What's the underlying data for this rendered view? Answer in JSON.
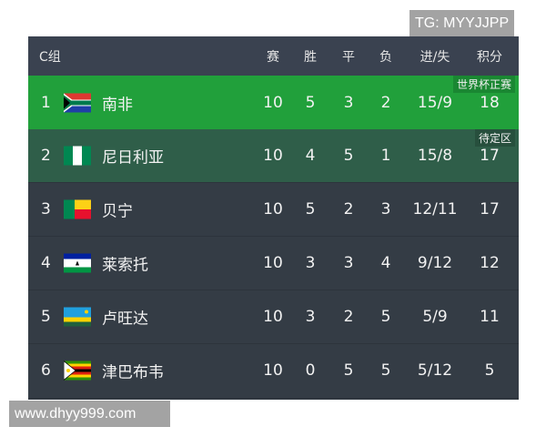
{
  "header": {
    "group": "C组",
    "columns": [
      "赛",
      "胜",
      "平",
      "负",
      "进/失",
      "积分"
    ]
  },
  "rows": [
    {
      "rank": "1",
      "team": "南非",
      "flag": "south-africa-flag",
      "played": "10",
      "won": "5",
      "drawn": "3",
      "lost": "2",
      "goals": "15/9",
      "points": "18",
      "badge": "世界杯正赛"
    },
    {
      "rank": "2",
      "team": "尼日利亚",
      "flag": "nigeria-flag",
      "played": "10",
      "won": "4",
      "drawn": "5",
      "lost": "1",
      "goals": "15/8",
      "points": "17",
      "badge": "待定区"
    },
    {
      "rank": "3",
      "team": "贝宁",
      "flag": "benin-flag",
      "played": "10",
      "won": "5",
      "drawn": "2",
      "lost": "3",
      "goals": "12/11",
      "points": "17"
    },
    {
      "rank": "4",
      "team": "莱索托",
      "flag": "lesotho-flag",
      "played": "10",
      "won": "3",
      "drawn": "3",
      "lost": "4",
      "goals": "9/12",
      "points": "12"
    },
    {
      "rank": "5",
      "team": "卢旺达",
      "flag": "rwanda-flag",
      "played": "10",
      "won": "3",
      "drawn": "2",
      "lost": "5",
      "goals": "5/9",
      "points": "11"
    },
    {
      "rank": "6",
      "team": "津巴布韦",
      "flag": "zimbabwe-flag",
      "played": "10",
      "won": "0",
      "drawn": "5",
      "lost": "5",
      "goals": "5/12",
      "points": "5"
    }
  ],
  "watermarks": {
    "top": "TG: MYYJJPP",
    "bottom": "www.dhyy999.com"
  },
  "colors": {
    "qualified": "#21a03b",
    "pending": "#2f5e49",
    "row": "#343c45",
    "header": "#3a4250"
  }
}
